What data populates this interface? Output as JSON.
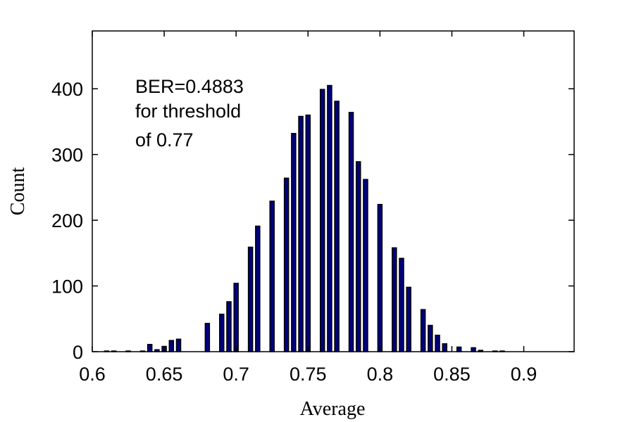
{
  "chart_data": {
    "type": "bar",
    "xlabel": "Average",
    "ylabel": "Count",
    "xlim": [
      0.6,
      0.935
    ],
    "ylim": [
      0,
      488
    ],
    "x_ticks": [
      0.6,
      0.65,
      0.7,
      0.75,
      0.8,
      0.85,
      0.9
    ],
    "x_tick_labels": [
      "0.6",
      "0.65",
      "0.7",
      "0.75",
      "0.8",
      "0.85",
      "0.9"
    ],
    "y_ticks": [
      0,
      100,
      200,
      300,
      400
    ],
    "y_tick_labels": [
      "0",
      "100",
      "200",
      "300",
      "400"
    ],
    "grid": false,
    "bar_color": "#000080",
    "annotation": [
      "BER=0.4883",
      "for threshold",
      "of 0.77"
    ],
    "x": [
      0.61,
      0.615,
      0.625,
      0.635,
      0.64,
      0.645,
      0.65,
      0.655,
      0.66,
      0.665,
      0.67,
      0.68,
      0.69,
      0.695,
      0.7,
      0.71,
      0.715,
      0.725,
      0.735,
      0.74,
      0.745,
      0.75,
      0.76,
      0.765,
      0.77,
      0.78,
      0.785,
      0.79,
      0.8,
      0.81,
      0.815,
      0.82,
      0.83,
      0.835,
      0.84,
      0.845,
      0.855,
      0.865,
      0.87,
      0.88,
      0.885,
      0.89,
      0.895
    ],
    "values": [
      1,
      1,
      1,
      1,
      11,
      3,
      8,
      17,
      19,
      0,
      0,
      43,
      57,
      76,
      104,
      159,
      191,
      229,
      264,
      332,
      358,
      360,
      399,
      405,
      381,
      364,
      289,
      262,
      224,
      158,
      142,
      98,
      64,
      40,
      25,
      12,
      7,
      6,
      2,
      1,
      1,
      0,
      0
    ]
  }
}
